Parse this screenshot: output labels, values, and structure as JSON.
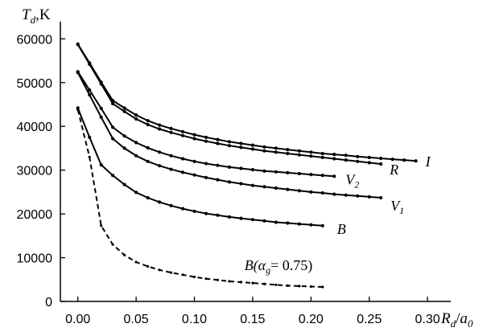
{
  "chart_data": {
    "type": "line",
    "ylabel": {
      "var": "T",
      "sub": "d",
      "unit": ",K"
    },
    "xlabel": {
      "num": "R",
      "num_sub": "d",
      "den": "a",
      "den_sub": "0"
    },
    "xlim": [
      -0.015,
      0.32
    ],
    "ylim": [
      0,
      63000
    ],
    "x_ticks": [
      {
        "value": 0.0,
        "label": "0.00"
      },
      {
        "value": 0.05,
        "label": "0.05"
      },
      {
        "value": 0.1,
        "label": "0.10"
      },
      {
        "value": 0.15,
        "label": "0.15"
      },
      {
        "value": 0.2,
        "label": "0.20"
      },
      {
        "value": 0.25,
        "label": "0.25"
      },
      {
        "value": 0.3,
        "label": "0.30"
      }
    ],
    "y_ticks": [
      {
        "value": 0,
        "label": "0"
      },
      {
        "value": 10000,
        "label": "10000"
      },
      {
        "value": 20000,
        "label": "20000"
      },
      {
        "value": 30000,
        "label": "30000"
      },
      {
        "value": 40000,
        "label": "40000"
      },
      {
        "value": 50000,
        "label": "50000"
      },
      {
        "value": 60000,
        "label": "60000"
      }
    ],
    "series": [
      {
        "name": "I",
        "sub": "",
        "dashed": false,
        "x": [
          0.0,
          0.01,
          0.02,
          0.03,
          0.04,
          0.05,
          0.06,
          0.07,
          0.08,
          0.09,
          0.1,
          0.11,
          0.12,
          0.13,
          0.14,
          0.15,
          0.16,
          0.17,
          0.18,
          0.19,
          0.2,
          0.21,
          0.22,
          0.23,
          0.24,
          0.25,
          0.26,
          0.27,
          0.28,
          0.29
        ],
        "y": [
          58800,
          54500,
          50100,
          45900,
          44200,
          42600,
          41300,
          40300,
          39500,
          38800,
          38100,
          37500,
          37000,
          36500,
          36100,
          35700,
          35300,
          35000,
          34700,
          34400,
          34100,
          33800,
          33600,
          33400,
          33100,
          32900,
          32700,
          32500,
          32300,
          32100
        ]
      },
      {
        "name": "R",
        "sub": "",
        "dashed": false,
        "x": [
          0.0,
          0.01,
          0.02,
          0.03,
          0.04,
          0.05,
          0.06,
          0.07,
          0.08,
          0.09,
          0.1,
          0.11,
          0.12,
          0.13,
          0.14,
          0.15,
          0.16,
          0.17,
          0.18,
          0.19,
          0.2,
          0.21,
          0.22,
          0.23,
          0.24,
          0.25,
          0.26
        ],
        "y": [
          58700,
          54200,
          49700,
          45200,
          43400,
          41700,
          40400,
          39400,
          38600,
          37900,
          37200,
          36600,
          36100,
          35600,
          35200,
          34800,
          34400,
          34100,
          33800,
          33500,
          33200,
          32900,
          32600,
          32300,
          32000,
          31700,
          31400
        ]
      },
      {
        "name": "V",
        "sub": "2",
        "dashed": false,
        "x": [
          0.0,
          0.01,
          0.02,
          0.03,
          0.04,
          0.05,
          0.06,
          0.07,
          0.08,
          0.09,
          0.1,
          0.11,
          0.12,
          0.13,
          0.14,
          0.15,
          0.16,
          0.17,
          0.18,
          0.19,
          0.2,
          0.21,
          0.22
        ],
        "y": [
          52500,
          48300,
          44100,
          39800,
          37800,
          36300,
          35100,
          34100,
          33300,
          32600,
          32000,
          31500,
          31100,
          30700,
          30400,
          30100,
          29800,
          29600,
          29400,
          29200,
          29000,
          28800,
          28600
        ]
      },
      {
        "name": "V",
        "sub": "1",
        "dashed": false,
        "x": [
          0.0,
          0.01,
          0.02,
          0.03,
          0.04,
          0.05,
          0.06,
          0.07,
          0.08,
          0.09,
          0.1,
          0.11,
          0.12,
          0.13,
          0.14,
          0.15,
          0.16,
          0.17,
          0.18,
          0.19,
          0.2,
          0.21,
          0.22,
          0.23,
          0.24,
          0.25,
          0.26
        ],
        "y": [
          52300,
          47200,
          42100,
          37200,
          35000,
          33300,
          32000,
          31000,
          30200,
          29500,
          28900,
          28300,
          27800,
          27300,
          26900,
          26500,
          26200,
          25900,
          25600,
          25300,
          25000,
          24800,
          24500,
          24300,
          24100,
          23900,
          23700
        ]
      },
      {
        "name": "B",
        "sub": "",
        "dashed": false,
        "x": [
          0.0,
          0.01,
          0.02,
          0.03,
          0.04,
          0.05,
          0.06,
          0.07,
          0.08,
          0.09,
          0.1,
          0.11,
          0.12,
          0.13,
          0.14,
          0.15,
          0.16,
          0.17,
          0.18,
          0.19,
          0.2,
          0.21
        ],
        "y": [
          44200,
          37500,
          31200,
          28800,
          26700,
          24900,
          23700,
          22700,
          21900,
          21200,
          20600,
          20100,
          19700,
          19300,
          19000,
          18700,
          18400,
          18100,
          17900,
          17700,
          17500,
          17300
        ]
      },
      {
        "name": "B(α",
        "sub": "g",
        "suffix": "= 0.75)",
        "dashed": true,
        "x": [
          0.0,
          0.01,
          0.02,
          0.03,
          0.04,
          0.05,
          0.06,
          0.07,
          0.08,
          0.09,
          0.1,
          0.11,
          0.12,
          0.13,
          0.14,
          0.15,
          0.16,
          0.17,
          0.18,
          0.19,
          0.2,
          0.21
        ],
        "y": [
          43800,
          33000,
          17300,
          13000,
          10600,
          9000,
          8000,
          7200,
          6600,
          6100,
          5600,
          5200,
          4900,
          4600,
          4400,
          4200,
          4000,
          3800,
          3600,
          3500,
          3400,
          3300
        ]
      }
    ]
  }
}
